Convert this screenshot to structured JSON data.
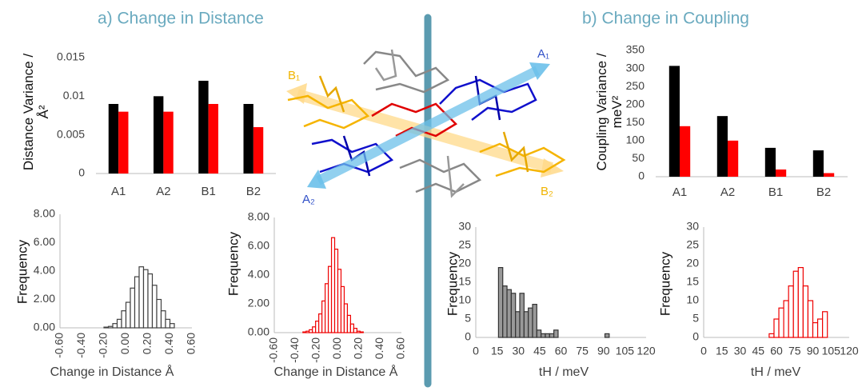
{
  "headings": {
    "a": "a) Change in Distance",
    "b": "b) Change in Coupling"
  },
  "diagram": {
    "labels": [
      "A₁",
      "B₁",
      "A₂",
      "B₂"
    ]
  },
  "chart_data": [
    {
      "type": "bar",
      "y_label": "Distance Variance / Å²",
      "categories": [
        "A1",
        "A2",
        "B1",
        "B2"
      ],
      "series": [
        {
          "color": "#000000",
          "values": [
            0.009,
            0.01,
            0.012,
            0.009
          ]
        },
        {
          "color": "#ff0000",
          "values": [
            0.008,
            0.008,
            0.009,
            0.006
          ]
        }
      ],
      "ylim": [
        0,
        0.015
      ],
      "yticks": [
        0,
        0.005,
        0.01,
        0.015
      ]
    },
    {
      "type": "bar",
      "y_label": "Coupling Variance / meV²",
      "categories": [
        "A1",
        "A2",
        "B1",
        "B2"
      ],
      "series": [
        {
          "color": "#000000",
          "values": [
            307,
            168,
            80,
            73
          ]
        },
        {
          "color": "#ff0000",
          "values": [
            140,
            100,
            20,
            10
          ]
        }
      ],
      "ylim": [
        0,
        350
      ],
      "yticks": [
        0,
        50,
        100,
        150,
        200,
        250,
        300,
        350
      ]
    },
    {
      "type": "histogram",
      "x_label": "Change in Distance Å",
      "y_label": "Frequency",
      "color": "#404040",
      "fill": "#ffffff",
      "bins": [
        -0.2,
        -0.16,
        -0.12,
        -0.08,
        -0.04,
        0,
        0.04,
        0.08,
        0.12,
        0.16,
        0.2,
        0.24,
        0.28,
        0.32,
        0.36,
        0.4,
        0.44
      ],
      "counts": [
        0.05,
        0.1,
        0.3,
        0.6,
        1.2,
        1.8,
        2.8,
        3.6,
        4.3,
        4.1,
        3.8,
        3.0,
        2.0,
        1.2,
        0.6,
        0.3
      ],
      "xlim": [
        -0.6,
        0.6
      ],
      "xticks": [
        {
          "value": -0.6,
          "label": "-0.60"
        },
        {
          "value": -0.4,
          "label": "-0.40"
        },
        {
          "value": -0.2,
          "label": "-0.20"
        },
        {
          "value": 0,
          "label": "0.00"
        },
        {
          "value": 0.2,
          "label": "0.20"
        },
        {
          "value": 0.4,
          "label": "0.40"
        },
        {
          "value": 0.6,
          "label": "0.60"
        }
      ],
      "ylim": [
        0,
        8
      ],
      "yticks": [
        {
          "value": 0,
          "label": "0.00"
        },
        {
          "value": 2,
          "label": "2.00"
        },
        {
          "value": 4,
          "label": "4.00"
        },
        {
          "value": 6,
          "label": "6.00"
        },
        {
          "value": 8,
          "label": "8.00"
        }
      ]
    },
    {
      "type": "histogram",
      "x_label": "Change in Distance Å",
      "y_label": "Frequency",
      "color": "#ee0000",
      "fill": "#ffffff",
      "bins": [
        -0.33,
        -0.3,
        -0.27,
        -0.24,
        -0.21,
        -0.18,
        -0.15,
        -0.12,
        -0.09,
        -0.06,
        -0.03,
        0,
        0.03,
        0.06,
        0.09,
        0.12,
        0.15,
        0.18,
        0.21,
        0.24
      ],
      "counts": [
        0.05,
        0.1,
        0.2,
        0.4,
        0.8,
        1.3,
        2.2,
        3.4,
        4.6,
        6.6,
        5.8,
        4.4,
        3.2,
        2.0,
        1.2,
        0.6,
        0.3,
        0.1,
        0.05
      ],
      "xlim": [
        -0.6,
        0.6
      ],
      "xticks": [
        {
          "value": -0.6,
          "label": "-0.60"
        },
        {
          "value": -0.4,
          "label": "-0.40"
        },
        {
          "value": -0.2,
          "label": "-0.20"
        },
        {
          "value": 0,
          "label": "0.00"
        },
        {
          "value": 0.2,
          "label": "0.20"
        },
        {
          "value": 0.4,
          "label": "0.40"
        },
        {
          "value": 0.6,
          "label": "0.60"
        }
      ],
      "ylim": [
        0,
        8
      ],
      "yticks": [
        {
          "value": 0,
          "label": "0.00"
        },
        {
          "value": 2,
          "label": "2.00"
        },
        {
          "value": 4,
          "label": "4.00"
        },
        {
          "value": 6,
          "label": "6.00"
        },
        {
          "value": 8,
          "label": "8.00"
        }
      ]
    },
    {
      "type": "histogram",
      "x_label": "tH / meV",
      "y_label": "Frequency",
      "color": "#333333",
      "fill": "#999999",
      "bins": [
        16,
        19,
        22,
        25,
        28,
        31,
        34,
        37,
        40,
        43,
        46,
        49,
        52,
        55,
        58,
        61,
        64,
        67,
        70,
        73,
        76,
        79,
        82,
        85,
        88,
        91,
        94,
        97
      ],
      "counts": [
        19,
        14,
        13,
        12,
        7,
        12,
        7,
        8,
        9,
        2,
        1,
        1,
        1,
        2,
        0,
        0,
        0,
        0,
        0,
        0,
        0,
        0,
        0,
        0,
        0,
        1,
        0
      ],
      "xlim": [
        0,
        120
      ],
      "xticks": [
        0,
        15,
        30,
        45,
        60,
        75,
        90,
        105,
        120
      ],
      "ylim": [
        0,
        30
      ],
      "yticks": [
        0,
        5,
        10,
        15,
        20,
        25,
        30
      ]
    },
    {
      "type": "histogram",
      "x_label": "tH / meV",
      "y_label": "Frequency",
      "color": "#ee0000",
      "fill": "#ffffff",
      "bins": [
        54,
        58,
        62,
        66,
        70,
        74,
        78,
        82,
        86,
        90,
        94,
        98,
        102
      ],
      "counts": [
        1,
        5,
        8,
        10,
        14,
        18,
        19,
        14,
        10,
        4,
        5,
        7
      ],
      "xlim": [
        0,
        120
      ],
      "xticks": [
        0,
        15,
        30,
        45,
        60,
        75,
        90,
        105,
        120
      ],
      "ylim": [
        0,
        30
      ],
      "yticks": [
        0,
        5,
        10,
        15,
        20,
        25,
        30
      ]
    }
  ]
}
